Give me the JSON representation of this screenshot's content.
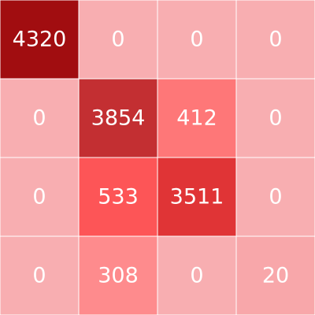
{
  "chart_data": {
    "type": "heatmap",
    "title": "",
    "xlabel": "",
    "ylabel": "",
    "rows": 4,
    "cols": 4,
    "values": [
      [
        4320,
        0,
        0,
        0
      ],
      [
        0,
        3854,
        412,
        0
      ],
      [
        0,
        533,
        3511,
        0
      ],
      [
        0,
        308,
        0,
        20
      ]
    ],
    "labels": [
      [
        "4320",
        "0",
        "0",
        "0"
      ],
      [
        "0",
        "3854",
        "412",
        "0"
      ],
      [
        "0",
        "533",
        "3511",
        "0"
      ],
      [
        "0",
        "308",
        "0",
        "20"
      ]
    ],
    "colors": [
      [
        "#a10d10",
        "#f8aeb1",
        "#f8aeb1",
        "#f8aeb1"
      ],
      [
        "#f8aeb1",
        "#c32f32",
        "#fe7778",
        "#f8aeb1"
      ],
      [
        "#f8aeb1",
        "#fd5557",
        "#e03436",
        "#f8aeb1"
      ],
      [
        "#f8aeb1",
        "#fe8b8d",
        "#f8aeb1",
        "#f8a7aa"
      ]
    ],
    "grid_line_color": "#ffffff",
    "text_color": "#ffffff"
  }
}
